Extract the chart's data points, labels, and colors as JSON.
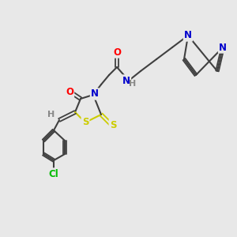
{
  "bg_color": "#e8e8e8",
  "bond_color": "#404040",
  "atom_colors": {
    "O": "#ff0000",
    "N": "#0000cc",
    "S": "#cccc00",
    "Cl": "#00bb00",
    "H": "#888888",
    "C": "#404040"
  },
  "font_size": 8.5
}
